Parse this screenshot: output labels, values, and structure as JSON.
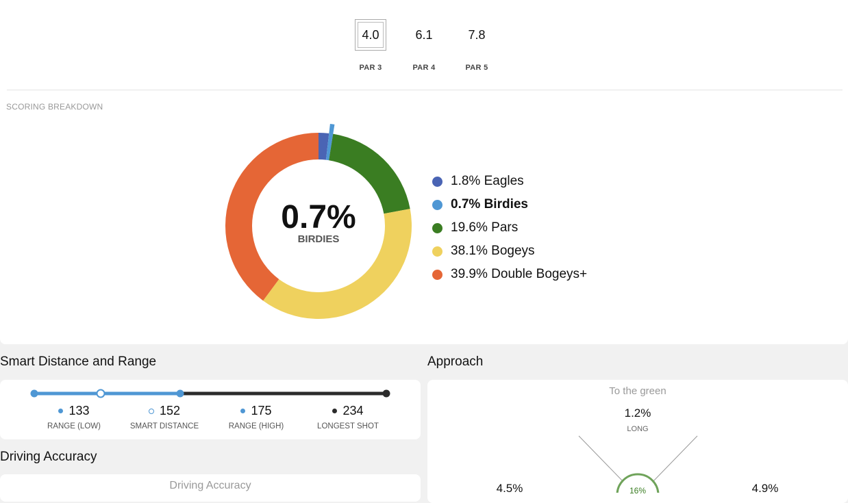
{
  "par_averages": [
    {
      "value": "4.0",
      "label": "PAR 3",
      "selected": true
    },
    {
      "value": "6.1",
      "label": "PAR 4",
      "selected": false
    },
    {
      "value": "7.8",
      "label": "PAR 5",
      "selected": false
    }
  ],
  "scoring": {
    "section_label": "SCORING BREAKDOWN",
    "center_value": "0.7%",
    "center_label": "BIRDIES",
    "legend": [
      {
        "text": "1.8% Eagles",
        "color": "#4a64b4"
      },
      {
        "text": "0.7% Birdies",
        "color": "#4f97d4"
      },
      {
        "text": "19.6% Pars",
        "color": "#3a7d22"
      },
      {
        "text": "38.1% Bogeys",
        "color": "#efd15e"
      },
      {
        "text": "39.9% Double Bogeys+",
        "color": "#e56636"
      }
    ]
  },
  "chart_data": {
    "type": "pie",
    "title": "SCORING BREAKDOWN",
    "categories": [
      "Eagles",
      "Birdies",
      "Pars",
      "Bogeys",
      "Double Bogeys+"
    ],
    "values": [
      1.8,
      0.7,
      19.6,
      38.1,
      39.9
    ],
    "colors": [
      "#4a64b4",
      "#4f97d4",
      "#3a7d22",
      "#efd15e",
      "#e56636"
    ],
    "highlighted": "Birdies",
    "donut": true
  },
  "smart_distance": {
    "heading": "Smart Distance and Range",
    "stats": [
      {
        "value": "133",
        "caption": "RANGE (LOW)",
        "dot": "filled-blue"
      },
      {
        "value": "152",
        "caption": "SMART DISTANCE",
        "dot": "hollow-blue"
      },
      {
        "value": "175",
        "caption": "RANGE (HIGH)",
        "dot": "filled-blue"
      },
      {
        "value": "234",
        "caption": "LONGEST SHOT",
        "dot": "filled-dark"
      }
    ]
  },
  "driving": {
    "heading": "Driving Accuracy",
    "card_title": "Driving Accuracy"
  },
  "approach": {
    "heading": "Approach",
    "card_title": "To the green",
    "long_value": "1.2%",
    "long_label": "LONG",
    "left_value": "4.5%",
    "right_value": "4.9%",
    "center_value": "16%"
  },
  "colors": {
    "blue": "#4f97d4",
    "dark": "#2b2b2b",
    "green": "#3a7d22"
  }
}
